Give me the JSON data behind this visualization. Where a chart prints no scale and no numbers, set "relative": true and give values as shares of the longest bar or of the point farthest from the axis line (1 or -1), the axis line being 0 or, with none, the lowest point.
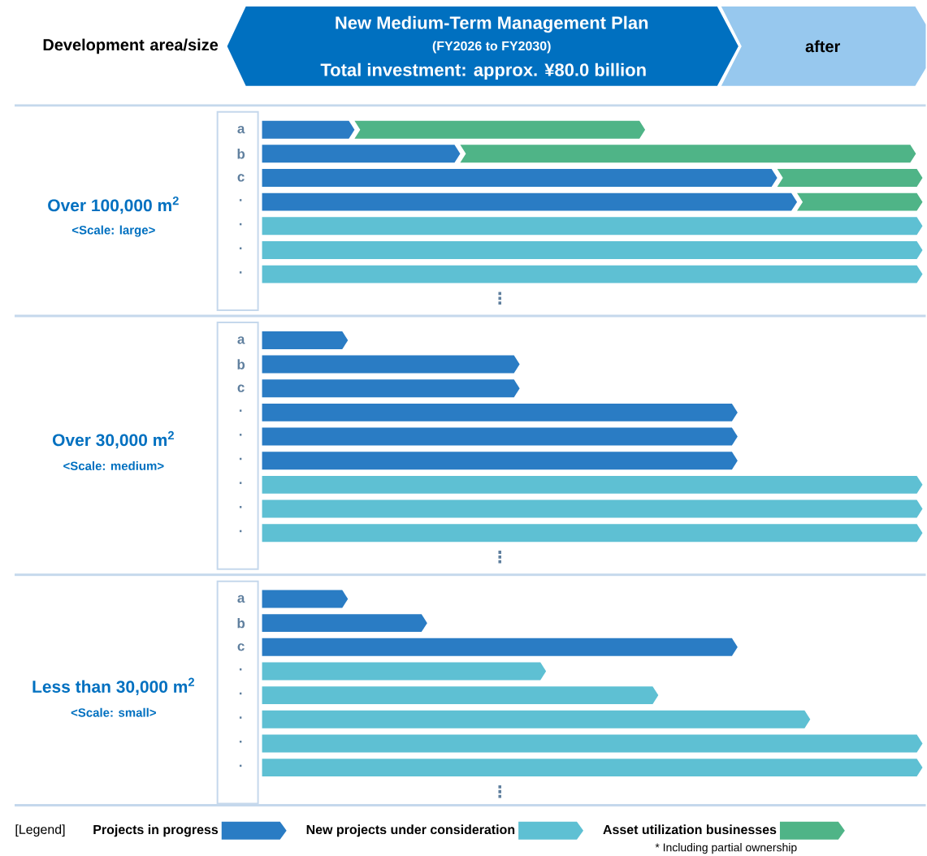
{
  "chart_data": [
    {
      "type": "bar",
      "orientation": "horizontal",
      "stacked": true,
      "relative": true,
      "title": "New Medium-Term Management Plan",
      "subtitle": "(FY2026 to FY2030)",
      "ylabel": "Over 100,000 m$^{2}$",
      "annotations": [
        "<Scale: large>",
        "⋮",
        "Development area/size",
        "Total investment: approx. ¥80.0 billion",
        "after",
        "* Including partial ownership"
      ],
      "legend": "bottom",
      "legend_title": "[Legend]",
      "categories": [
        "a",
        "b",
        "c",
        "·",
        "·",
        "·",
        "·"
      ],
      "series": [
        {
          "name": "Projects in progress",
          "color": "#2a7cc4",
          "values": [
            0.14,
            0.3,
            0.78,
            0.81,
            null,
            null,
            null
          ]
        },
        {
          "name": "New projects under consideration",
          "color": "#5ec0d3",
          "values": [
            null,
            null,
            null,
            null,
            1,
            1,
            1
          ]
        },
        {
          "name": "Asset utilization businesses",
          "color": "#4fb487",
          "values": [
            0.44,
            0.69,
            0.22,
            0.19,
            null,
            null,
            null
          ]
        }
      ]
    },
    {
      "type": "bar",
      "orientation": "horizontal",
      "stacked": true,
      "relative": true,
      "ylabel": "Over 30,000 m$^{2}$",
      "annotations": [
        "<Scale: medium>",
        "⋮"
      ],
      "categories": [
        "a",
        "b",
        "c",
        "·",
        "·",
        "·",
        "·",
        "·",
        "·"
      ],
      "series": [
        {
          "color": "#2a7cc4",
          "values": [
            0.13,
            0.39,
            0.39,
            0.72,
            0.72,
            0.72,
            null,
            null,
            null
          ]
        },
        {
          "color": "#5ec0d3",
          "values": [
            null,
            null,
            null,
            null,
            null,
            null,
            1,
            1,
            1
          ]
        }
      ]
    },
    {
      "type": "bar",
      "orientation": "horizontal",
      "stacked": true,
      "relative": true,
      "ylabel": "Less than 30,000 m$^{2}$",
      "annotations": [
        "<Scale: small>",
        "⋮"
      ],
      "categories": [
        "a",
        "b",
        "c",
        "·",
        "·",
        "·",
        "·",
        "·"
      ],
      "series": [
        {
          "color": "#2a7cc4",
          "values": [
            0.13,
            0.25,
            0.72,
            null,
            null,
            null,
            null,
            null
          ]
        },
        {
          "color": "#5ec0d3",
          "values": [
            null,
            null,
            null,
            0.43,
            0.6,
            0.83,
            1,
            1
          ]
        }
      ]
    }
  ]
}
